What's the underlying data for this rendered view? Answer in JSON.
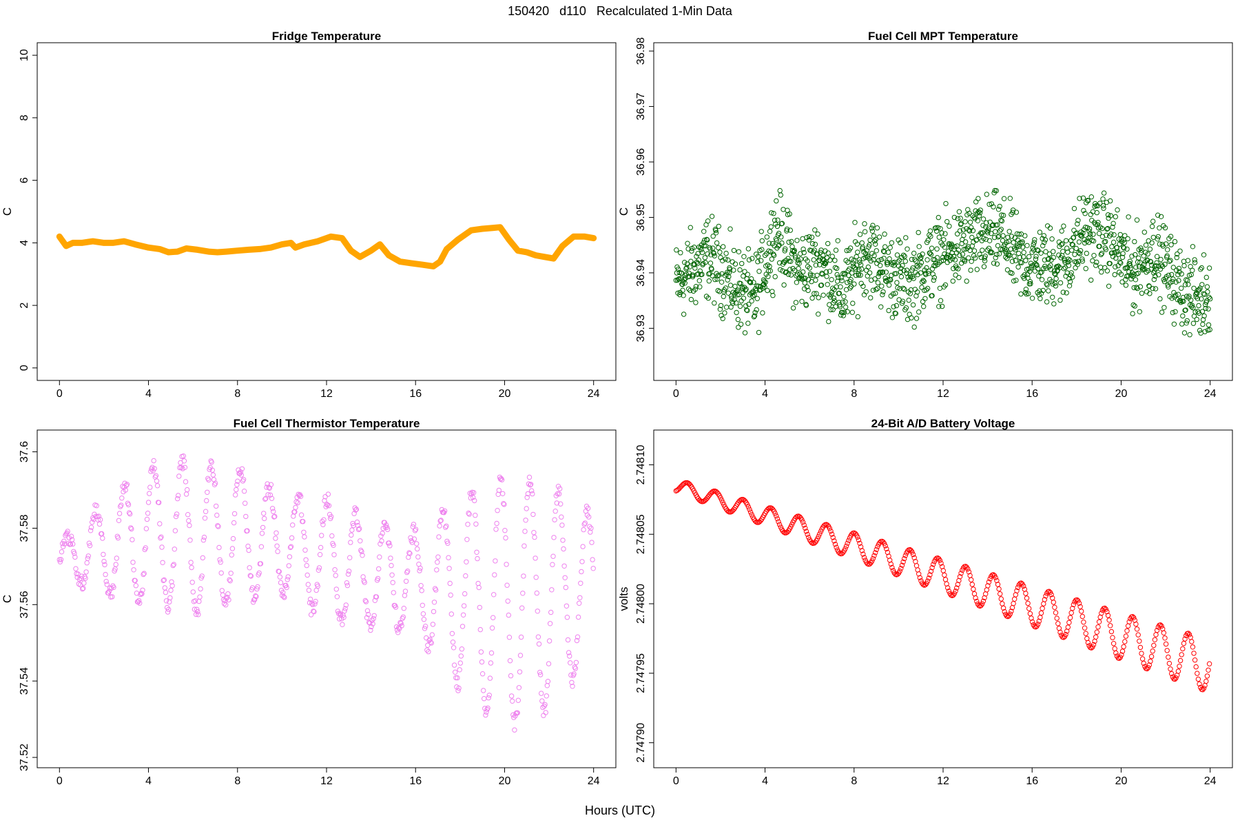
{
  "figure": {
    "suptitle": "150420   d110   Recalculated 1-Min Data",
    "xlabel": "Hours (UTC)"
  },
  "chart_data": [
    {
      "type": "line",
      "title": "Fridge Temperature",
      "ylabel": "C",
      "xlabel": "Hours (UTC)",
      "xlim": [
        -1,
        25
      ],
      "ylim": [
        -0.4,
        10.4
      ],
      "xticks": [
        0,
        4,
        8,
        12,
        16,
        20,
        24
      ],
      "yticks": [
        0,
        2,
        4,
        6,
        8,
        10
      ],
      "color": "#FFA500",
      "x": [
        0,
        0.1,
        0.3,
        0.6,
        1.0,
        1.5,
        2.0,
        2.4,
        2.9,
        3.4,
        4.0,
        4.5,
        4.9,
        5.3,
        5.7,
        6.2,
        6.7,
        7.1,
        7.5,
        8.0,
        8.5,
        9.0,
        9.5,
        10.0,
        10.4,
        10.6,
        11.0,
        11.6,
        12.2,
        12.7,
        13.1,
        13.5,
        14.0,
        14.4,
        14.8,
        15.3,
        15.8,
        16.3,
        16.8,
        17.1,
        17.4,
        17.9,
        18.5,
        19.0,
        19.5,
        19.8,
        20.2,
        20.6,
        21.0,
        21.4,
        21.8,
        22.2,
        22.6,
        23.1,
        23.6,
        24.0
      ],
      "y": [
        4.2,
        4.1,
        3.9,
        4.0,
        4.0,
        4.05,
        4.0,
        4.0,
        4.05,
        3.95,
        3.85,
        3.8,
        3.7,
        3.72,
        3.82,
        3.78,
        3.72,
        3.7,
        3.72,
        3.75,
        3.78,
        3.8,
        3.85,
        3.95,
        4.0,
        3.85,
        3.95,
        4.05,
        4.2,
        4.15,
        3.75,
        3.55,
        3.75,
        3.95,
        3.6,
        3.4,
        3.35,
        3.3,
        3.25,
        3.4,
        3.8,
        4.1,
        4.4,
        4.45,
        4.48,
        4.5,
        4.1,
        3.75,
        3.7,
        3.6,
        3.55,
        3.5,
        3.9,
        4.2,
        4.2,
        4.15
      ]
    },
    {
      "type": "scatter",
      "title": "Fuel Cell MPT Temperature",
      "ylabel": "C",
      "xlabel": "Hours (UTC)",
      "xlim": [
        -1,
        25
      ],
      "ylim": [
        36.9206,
        36.9815
      ],
      "xticks": [
        0,
        4,
        8,
        12,
        16,
        20,
        24
      ],
      "yticks": [
        36.93,
        36.94,
        36.95,
        36.96,
        36.97,
        36.98
      ],
      "color": "#006400",
      "baseline_x": [
        0,
        1.5,
        2.5,
        3.5,
        4.5,
        5.5,
        6.5,
        7.5,
        8.5,
        9.5,
        10.5,
        11.5,
        12.5,
        13.5,
        14.5,
        15.5,
        16.5,
        17.5,
        18.5,
        19.5,
        20.5,
        21.5,
        22.5,
        23.5,
        24
      ],
      "baseline_y": [
        36.938,
        36.943,
        36.938,
        36.935,
        36.948,
        36.94,
        36.942,
        36.936,
        36.944,
        36.94,
        36.938,
        36.942,
        36.944,
        36.946,
        36.947,
        36.942,
        36.941,
        36.942,
        36.948,
        36.946,
        36.94,
        36.944,
        36.938,
        36.935,
        36.937
      ],
      "spread": 0.0055,
      "n_points": 1440
    },
    {
      "type": "scatter",
      "title": "Fuel Cell Thermistor Temperature",
      "ylabel": "C",
      "xlabel": "Hours (UTC)",
      "xlim": [
        -1,
        25
      ],
      "ylim": [
        37.5173,
        37.6057
      ],
      "xticks": [
        0,
        4,
        8,
        12,
        16,
        20,
        24
      ],
      "yticks": [
        37.52,
        37.54,
        37.56,
        37.58,
        37.6
      ],
      "color": "#EE82EE",
      "oscillation_period_hours": 1.3,
      "center_x": [
        0,
        2,
        4,
        6,
        8,
        10,
        12,
        14,
        16,
        18,
        20,
        22,
        24
      ],
      "center_y": [
        37.572,
        37.575,
        37.578,
        37.578,
        37.578,
        37.576,
        37.572,
        37.568,
        37.566,
        37.563,
        37.561,
        37.562,
        37.565
      ],
      "amplitude_x": [
        0,
        2,
        4,
        6,
        8,
        10,
        12,
        14,
        16,
        18,
        20,
        22,
        24
      ],
      "amplitude_y": [
        0.004,
        0.012,
        0.018,
        0.02,
        0.018,
        0.013,
        0.016,
        0.014,
        0.013,
        0.025,
        0.033,
        0.03,
        0.018
      ],
      "n_points": 1440
    },
    {
      "type": "scatter",
      "title": "24-Bit A/D Battery Voltage",
      "ylabel": "volts",
      "xlabel": "Hours (UTC)",
      "xlim": [
        -1,
        25
      ],
      "ylim": [
        2.747882,
        2.748125
      ],
      "xticks": [
        0,
        4,
        8,
        12,
        16,
        20,
        24
      ],
      "yticks": [
        2.7479,
        2.74795,
        2.748,
        2.74805,
        2.7481
      ],
      "ytick_labels": [
        "2.74790",
        "2.74795",
        "2.74800",
        "2.74805",
        "2.74810"
      ],
      "color": "#FF0000",
      "oscillation_period_hours": 1.25,
      "trend_start": 2.748085,
      "trend_end": 2.747955,
      "amplitude_start": 4.5e-06,
      "amplitude_end": 1.9e-05,
      "n_points": 1440
    }
  ]
}
